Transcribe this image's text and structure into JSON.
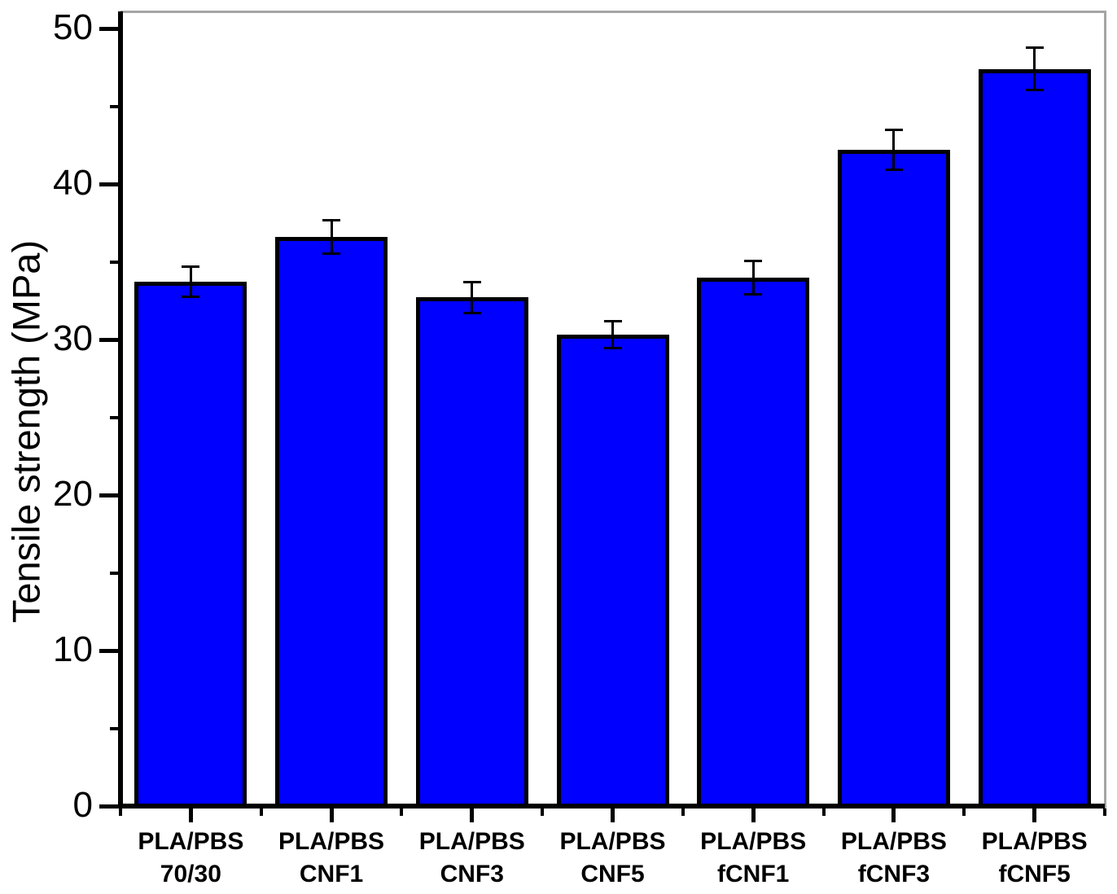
{
  "chart_data": {
    "type": "bar",
    "title": "",
    "xlabel": "",
    "ylabel": "Tensile strength (MPa)",
    "categories": [
      "PLA/PBS\n70/30",
      "PLA/PBS\nCNF1",
      "PLA/PBS\nCNF3",
      "PLA/PBS\nCNF5",
      "PLA/PBS\nfCNF1",
      "PLA/PBS\nfCNF3",
      "PLA/PBS\nfCNF5"
    ],
    "values": [
      33.7,
      36.6,
      32.7,
      30.3,
      34.0,
      42.2,
      47.4
    ],
    "errors": [
      1.0,
      1.1,
      1.0,
      0.9,
      1.1,
      1.3,
      1.4
    ],
    "ylim": [
      0,
      51.1
    ],
    "yticks_major": [
      0,
      10,
      20,
      30,
      40,
      50
    ],
    "ytick_labels": [
      "0",
      "10",
      "20",
      "30",
      "40",
      "50"
    ],
    "yticks_minor": [
      5,
      15,
      25,
      35,
      45
    ],
    "grid": false,
    "legend": false,
    "bar_fill": "#0000FF",
    "bar_edge": "#000000",
    "axis_color": "#000000",
    "frame_color": "#A5A5A5",
    "error_color": "#000000",
    "text_color": "#000000"
  }
}
